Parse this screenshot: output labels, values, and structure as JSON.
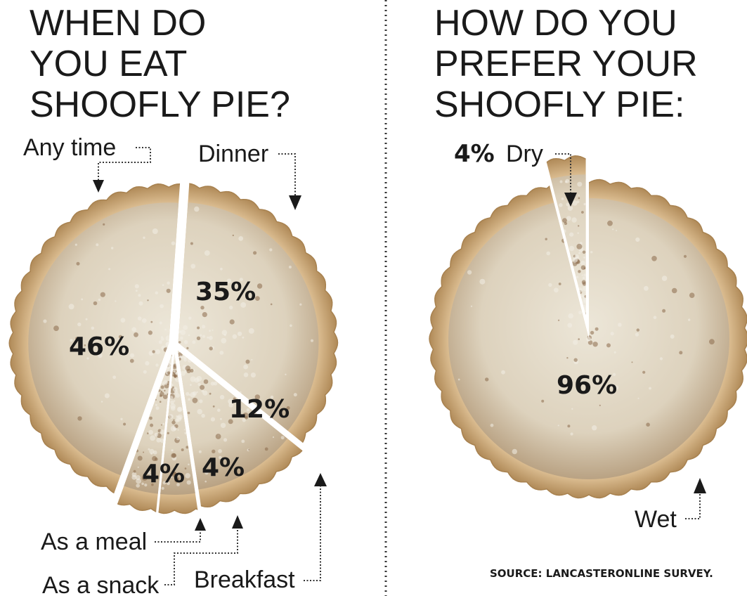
{
  "chart_data": [
    {
      "type": "pie",
      "title_lines": [
        "WHEN DO",
        "YOU EAT",
        "SHOOFLY PIE?"
      ],
      "slices": [
        {
          "label": "Dinner",
          "value": 35,
          "value_label": "35%"
        },
        {
          "label": "Breakfast",
          "value": 12,
          "value_label": "12%"
        },
        {
          "label": "As a snack",
          "value": 4,
          "value_label": "4%"
        },
        {
          "label": "As a meal",
          "value": 4,
          "value_label": "4%"
        },
        {
          "label": "Any time",
          "value": 46,
          "value_label": "46%"
        }
      ]
    },
    {
      "type": "pie",
      "title_lines": [
        "HOW DO YOU",
        "PREFER YOUR",
        "SHOOFLY PIE:"
      ],
      "slices": [
        {
          "label": "Wet",
          "value": 96,
          "value_label": "96%"
        },
        {
          "label": "Dry",
          "value": 4,
          "value_label": "4%"
        }
      ]
    }
  ],
  "source": "SOURCE: LANCASTERONLINE SURVEY.",
  "colors": {
    "crust": "#d9b98a",
    "crust_edge": "#b8925e",
    "crumb": "#e6ddcc",
    "crumb_dark": "#8a6a4a",
    "divider": "#333333"
  }
}
